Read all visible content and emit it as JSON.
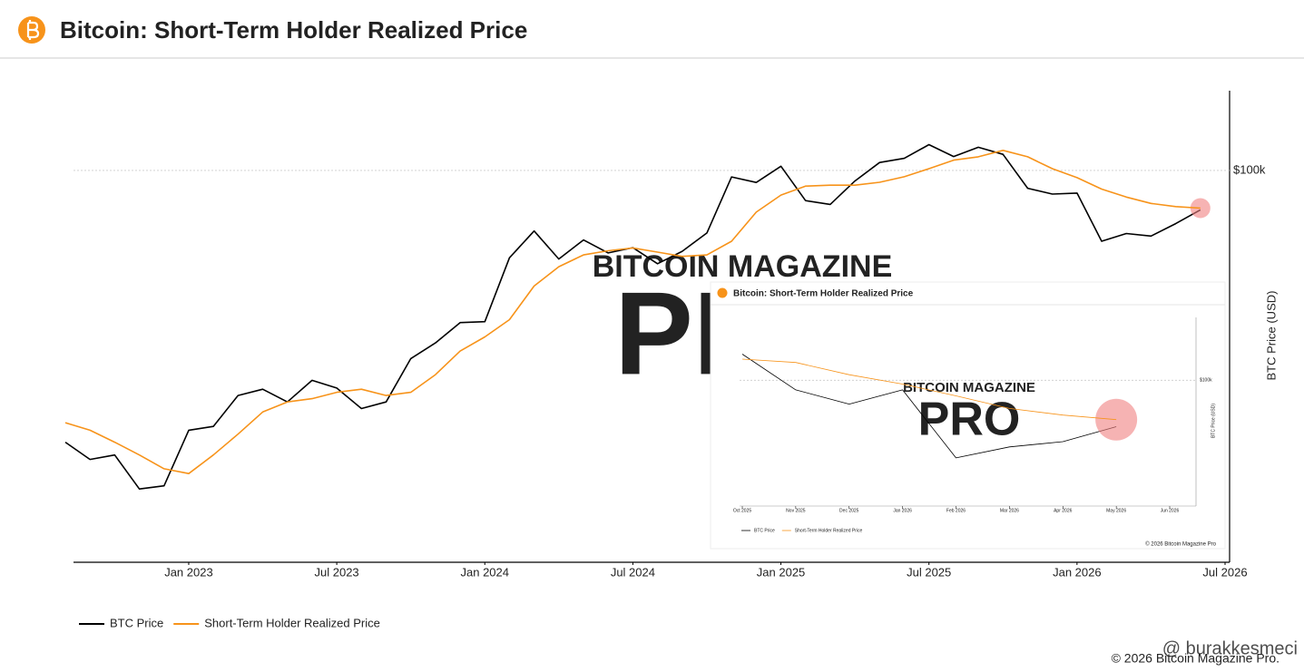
{
  "chart_data": [
    {
      "type": "line",
      "title": "Bitcoin: Short-Term Holder Realized Price",
      "y_label": "BTC Price (USD)",
      "log_scale": true,
      "grid": true,
      "legend": "bottom-left",
      "watermark_top": "BITCOIN MAGAZINE",
      "watermark_bottom": "PRO",
      "x": [
        "Aug 2022",
        "Sep 2022",
        "Oct 2022",
        "Nov 2022",
        "Dec 2022",
        "Jan 2023",
        "Feb 2023",
        "Mar 2023",
        "Apr 2023",
        "May 2023",
        "Jun 2023",
        "Jul 2023",
        "Aug 2023",
        "Sep 2023",
        "Oct 2023",
        "Nov 2023",
        "Dec 2023",
        "Jan 2024",
        "Feb 2024",
        "Mar 2024",
        "Apr 2024",
        "May 2024",
        "Jun 2024",
        "Jul 2024",
        "Aug 2024",
        "Sep 2024",
        "Oct 2024",
        "Nov 2024",
        "Dec 2024",
        "Jan 2025",
        "Feb 2025",
        "Mar 2025",
        "Apr 2025",
        "May 2025",
        "Jun 2025",
        "Jul 2025",
        "Aug 2025",
        "Sep 2025",
        "Oct 2025",
        "Nov 2025",
        "Dec 2025",
        "Jan 2026",
        "Feb 2026",
        "Mar 2026",
        "Apr 2026",
        "May 2026",
        "Jun 2026"
      ],
      "xlim": [
        "Aug 2022",
        "Jul 2026"
      ],
      "xticks": [
        "Jan 2023",
        "Jul 2023",
        "Jan 2024",
        "Jul 2024",
        "Jan 2025",
        "Jul 2025",
        "Jan 2026",
        "Jul 2026"
      ],
      "ylim": [
        10900,
        157000
      ],
      "yticks": [
        {
          "value": 100000,
          "label": "$100k"
        }
      ],
      "series": [
        {
          "name": "BTC Price",
          "color": "#000000",
          "values": [
            21500,
            19500,
            20000,
            16500,
            16800,
            23000,
            23500,
            28000,
            29000,
            27000,
            30500,
            29200,
            26000,
            27000,
            34500,
            37700,
            42300,
            42500,
            61000,
            71000,
            60600,
            67500,
            62700,
            64600,
            59000,
            63300,
            70200,
            96400,
            93400,
            102400,
            84300,
            82500,
            94200,
            104600,
            107100,
            115700,
            108200,
            114000,
            109500,
            90400,
            87500,
            88000,
            67000,
            70000,
            69000,
            74000,
            80000
          ]
        },
        {
          "name": "Short-Term Holder Realized Price",
          "color": "#f7931a",
          "values": [
            24000,
            23000,
            21500,
            20000,
            18500,
            18000,
            20000,
            22500,
            25500,
            27000,
            27500,
            28500,
            29000,
            28000,
            28500,
            31500,
            36000,
            39000,
            43000,
            52000,
            58000,
            62000,
            63500,
            64500,
            63000,
            61500,
            62000,
            67000,
            79000,
            87000,
            91500,
            92000,
            92000,
            93500,
            96500,
            101000,
            106000,
            108000,
            112000,
            108000,
            101000,
            96000,
            90000,
            86000,
            83000,
            81500,
            80800
          ]
        }
      ]
    },
    {
      "type": "line",
      "title": "Bitcoin: Short-Term Holder Realized Price",
      "y_label": "BTC Price (USD)",
      "log_scale": true,
      "grid": true,
      "legend": "bottom-left",
      "watermark_top": "BITCOIN MAGAZINE",
      "watermark_bottom": "PRO",
      "copyright": "© 2026 Bitcoin Magazine Pro",
      "x": [
        "Oct 2025",
        "Nov 2025",
        "Dec 2025",
        "Jan 2026",
        "Feb 2026",
        "Mar 2026",
        "Apr 2026",
        "May 2026"
      ],
      "xlim": [
        "Oct 2025",
        "Jun 2026"
      ],
      "xticks": [
        "Oct 2025",
        "Nov 2025",
        "Dec 2025",
        "Jan 2026",
        "Feb 2026",
        "Mar 2026",
        "Apr 2026",
        "May 2026",
        "Jun 2026"
      ],
      "ylim": [
        51000,
        140000
      ],
      "yticks": [
        {
          "value": 100000,
          "label": "$100k"
        }
      ],
      "series": [
        {
          "name": "BTC Price",
          "color": "#000000",
          "values": [
            115000,
            95000,
            88000,
            95000,
            66000,
            70000,
            72000,
            78000
          ]
        },
        {
          "name": "Short-Term Holder Realized Price",
          "color": "#f7931a",
          "values": [
            112000,
            110000,
            103000,
            98000,
            92000,
            86000,
            83000,
            81000
          ]
        }
      ]
    }
  ],
  "credit": "@ burakkesmeci",
  "copyright": "© 2026 Bitcoin Magazine Pro."
}
